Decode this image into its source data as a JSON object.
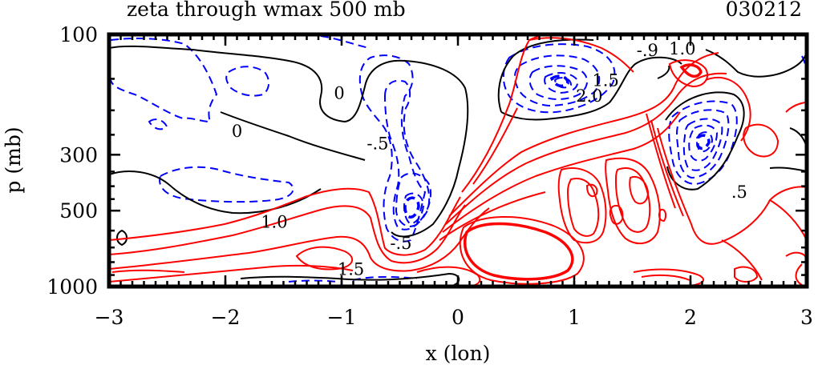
{
  "chart_data": {
    "type": "contour",
    "title": "zeta through wmax 500 mb",
    "date_label": "030212",
    "xlabel": "x (lon)",
    "ylabel": "p (mb)",
    "xlim": [
      -3,
      3
    ],
    "xticks": [
      "-3",
      "-2",
      "-1",
      "0",
      "1",
      "2",
      "3"
    ],
    "yticks": [
      {
        "p": 100,
        "label": "100"
      },
      {
        "p": 300,
        "label": "300"
      },
      {
        "p": 500,
        "label": "500"
      },
      {
        "p": 1000,
        "label": "1000"
      }
    ],
    "ylim_p": [
      1000,
      100
    ],
    "y_scale": "log-pressure (reversed)",
    "colors": {
      "positive": "#ff0000",
      "negative": "#0000ff",
      "zero": "#000000",
      "frame": "#000000"
    },
    "contour_labels": [
      {
        "text": "0",
        "x": -1.02,
        "p": 180
      },
      {
        "text": "0",
        "x": -1.9,
        "p": 255
      },
      {
        "text": "-.5",
        "x": -0.69,
        "p": 285
      },
      {
        "text": "1.0",
        "x": -1.58,
        "p": 585
      },
      {
        "text": "-.5",
        "x": -0.49,
        "p": 710
      },
      {
        "text": "1.5",
        "x": -0.92,
        "p": 900
      },
      {
        "text": "-.9",
        "x": 1.63,
        "p": 122
      },
      {
        "text": "1.0",
        "x": 1.93,
        "p": 120
      },
      {
        "text": "2.0",
        "x": 1.13,
        "p": 185
      },
      {
        "text": "1.5",
        "x": 1.27,
        "p": 160
      },
      {
        "text": ".5",
        "x": 2.42,
        "p": 445
      }
    ]
  }
}
